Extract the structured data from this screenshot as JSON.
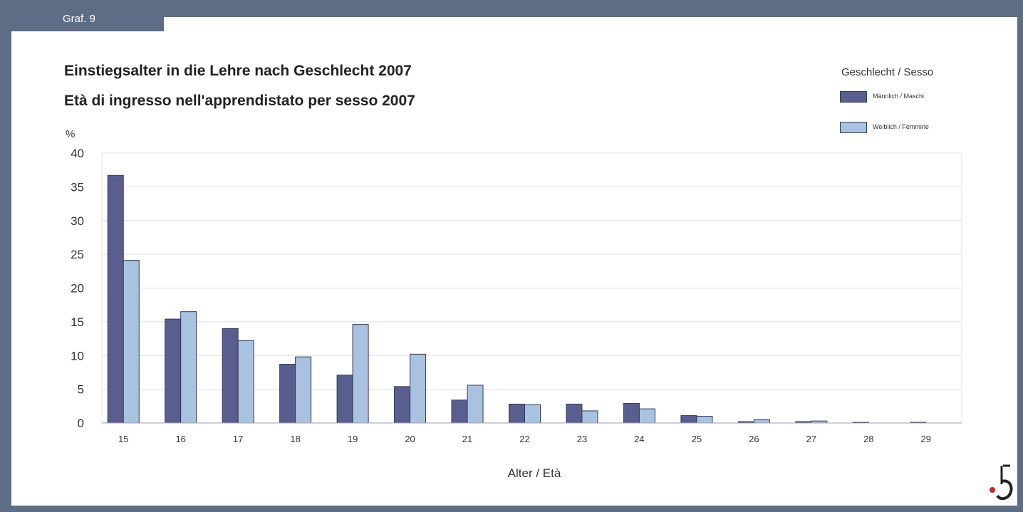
{
  "tab_label": "Graf. 9",
  "colors": {
    "frame": "#5e6d86",
    "male": "#5a5e8f",
    "female": "#a9c2e0"
  },
  "logo": {
    "name": "astat-logo-icon"
  },
  "chart_data": {
    "type": "bar",
    "title": "Einstiegsalter in die Lehre nach Geschlecht 2007",
    "subtitle": "Età di ingresso nell'apprendistato per sesso 2007",
    "xlabel": "Alter / Età",
    "ylabel": "%",
    "ylim": [
      0,
      40
    ],
    "yticks": [
      0,
      5,
      10,
      15,
      20,
      25,
      30,
      35,
      40
    ],
    "grid": true,
    "legend_title": "Geschlecht / Sesso",
    "legend_position": "top-right",
    "categories": [
      "15",
      "16",
      "17",
      "18",
      "19",
      "20",
      "21",
      "22",
      "23",
      "24",
      "25",
      "26",
      "27",
      "28",
      "29"
    ],
    "series": [
      {
        "name": "Männlich / Maschi",
        "values": [
          36.7,
          15.4,
          14.0,
          8.7,
          7.1,
          5.4,
          3.4,
          2.8,
          2.8,
          2.9,
          1.1,
          0.2,
          0.2,
          0.1,
          0.1
        ]
      },
      {
        "name": "Weiblich / Femmine",
        "values": [
          24.1,
          16.5,
          12.2,
          9.8,
          14.6,
          10.2,
          5.6,
          2.7,
          1.8,
          2.1,
          1.0,
          0.5,
          0.3,
          0.0,
          0.0
        ]
      }
    ]
  }
}
